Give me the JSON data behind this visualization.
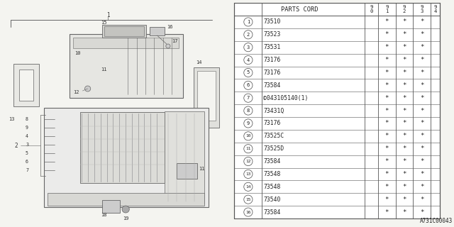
{
  "bg_color": "#f4f4f0",
  "table_bg": "#ffffff",
  "line_color": "#555555",
  "text_color": "#222222",
  "footnote": "A731C00043",
  "rows": [
    {
      "num": 1,
      "part": "73510",
      "c91": "*",
      "c92": "*",
      "c93": "*"
    },
    {
      "num": 2,
      "part": "73523",
      "c91": "*",
      "c92": "*",
      "c93": "*"
    },
    {
      "num": 3,
      "part": "73531",
      "c91": "*",
      "c92": "*",
      "c93": "*"
    },
    {
      "num": 4,
      "part": "73176",
      "c91": "*",
      "c92": "*",
      "c93": "*"
    },
    {
      "num": 5,
      "part": "73176",
      "c91": "*",
      "c92": "*",
      "c93": "*"
    },
    {
      "num": 6,
      "part": "73584",
      "c91": "*",
      "c92": "*",
      "c93": "*"
    },
    {
      "num": 7,
      "part": "©043105140(1)",
      "c91": "*",
      "c92": "*",
      "c93": "*"
    },
    {
      "num": 8,
      "part": "73431Q",
      "c91": "*",
      "c92": "*",
      "c93": "*"
    },
    {
      "num": 9,
      "part": "73176",
      "c91": "*",
      "c92": "*",
      "c93": "*"
    },
    {
      "num": 10,
      "part": "73525C",
      "c91": "*",
      "c92": "*",
      "c93": "*"
    },
    {
      "num": 11,
      "part": "73525D",
      "c91": "*",
      "c92": "*",
      "c93": "*"
    },
    {
      "num": 12,
      "part": "73584",
      "c91": "*",
      "c92": "*",
      "c93": "*"
    },
    {
      "num": 13,
      "part": "73548",
      "c91": "*",
      "c92": "*",
      "c93": "*"
    },
    {
      "num": 14,
      "part": "73548",
      "c91": "*",
      "c92": "*",
      "c93": "*"
    },
    {
      "num": 15,
      "part": "73540",
      "c91": "*",
      "c92": "*",
      "c93": "*"
    },
    {
      "num": 16,
      "part": "73584",
      "c91": "*",
      "c92": "*",
      "c93": "*"
    }
  ],
  "diagram_label_color": "#333333",
  "diagram_line_color": "#666666"
}
